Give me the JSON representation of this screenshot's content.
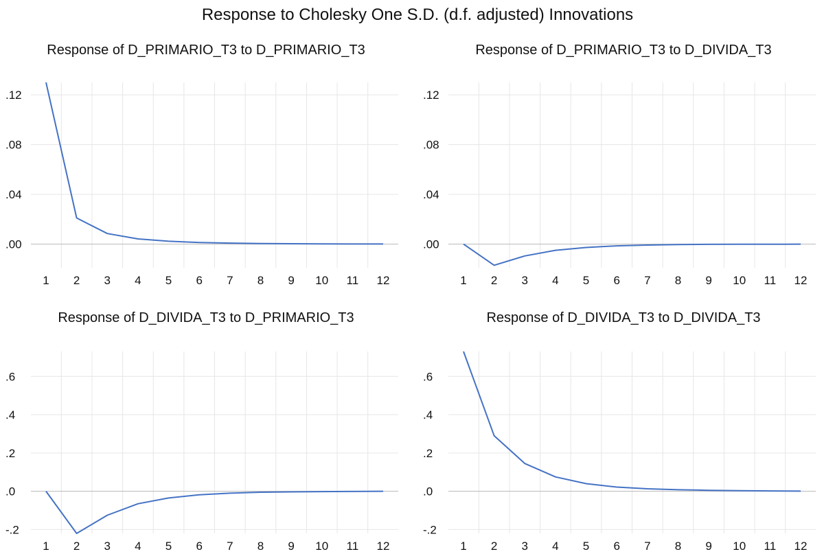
{
  "title": "Response to Cholesky One S.D. (d.f. adjusted) Innovations",
  "chart_data": [
    {
      "type": "line",
      "title": "Response of D_PRIMARIO_T3 to D_PRIMARIO_T3",
      "x": [
        1,
        2,
        3,
        4,
        5,
        6,
        7,
        8,
        9,
        10,
        11,
        12
      ],
      "x_tick_labels": [
        "1",
        "2",
        "3",
        "4",
        "5",
        "6",
        "7",
        "8",
        "9",
        "10",
        "11",
        "12"
      ],
      "series": [
        {
          "values": [
            0.13,
            0.021,
            0.0085,
            0.0042,
            0.0023,
            0.0013,
            0.0008,
            0.0005,
            0.0003,
            0.0002,
            0.0001,
            0.0001
          ]
        }
      ],
      "ylim": [
        -0.019,
        0.13
      ],
      "y_ticks": [
        0.0,
        0.04,
        0.08,
        0.12
      ],
      "y_tick_labels": [
        ".00",
        ".04",
        ".08",
        ".12"
      ],
      "grid": true,
      "line_color": "#4472c4"
    },
    {
      "type": "line",
      "title": "Response of D_PRIMARIO_T3 to D_DIVIDA_T3",
      "x": [
        1,
        2,
        3,
        4,
        5,
        6,
        7,
        8,
        9,
        10,
        11,
        12
      ],
      "x_tick_labels": [
        "1",
        "2",
        "3",
        "4",
        "5",
        "6",
        "7",
        "8",
        "9",
        "10",
        "11",
        "12"
      ],
      "series": [
        {
          "values": [
            0.0,
            -0.017,
            -0.0095,
            -0.005,
            -0.0027,
            -0.0014,
            -0.0008,
            -0.0004,
            -0.0002,
            -0.0001,
            -0.0001,
            0.0
          ]
        }
      ],
      "ylim": [
        -0.019,
        0.13
      ],
      "y_ticks": [
        0.0,
        0.04,
        0.08,
        0.12
      ],
      "y_tick_labels": [
        ".00",
        ".04",
        ".08",
        ".12"
      ],
      "grid": true,
      "line_color": "#4472c4"
    },
    {
      "type": "line",
      "title": "Response of D_DIVIDA_T3 to D_PRIMARIO_T3",
      "x": [
        1,
        2,
        3,
        4,
        5,
        6,
        7,
        8,
        9,
        10,
        11,
        12
      ],
      "x_tick_labels": [
        "1",
        "2",
        "3",
        "4",
        "5",
        "6",
        "7",
        "8",
        "9",
        "10",
        "11",
        "12"
      ],
      "series": [
        {
          "values": [
            0.0,
            -0.22,
            -0.125,
            -0.065,
            -0.035,
            -0.018,
            -0.01,
            -0.005,
            -0.003,
            -0.0015,
            -0.0008,
            0.0
          ]
        }
      ],
      "ylim": [
        -0.22,
        0.73
      ],
      "y_ticks": [
        -0.2,
        0.0,
        0.2,
        0.4,
        0.6
      ],
      "y_tick_labels": [
        "-.2",
        ".0",
        ".2",
        ".4",
        ".6"
      ],
      "grid": true,
      "line_color": "#4472c4"
    },
    {
      "type": "line",
      "title": "Response of D_DIVIDA_T3 to D_DIVIDA_T3",
      "x": [
        1,
        2,
        3,
        4,
        5,
        6,
        7,
        8,
        9,
        10,
        11,
        12
      ],
      "x_tick_labels": [
        "1",
        "2",
        "3",
        "4",
        "5",
        "6",
        "7",
        "8",
        "9",
        "10",
        "11",
        "12"
      ],
      "series": [
        {
          "values": [
            0.73,
            0.29,
            0.145,
            0.075,
            0.04,
            0.022,
            0.013,
            0.008,
            0.005,
            0.003,
            0.002,
            0.001
          ]
        }
      ],
      "ylim": [
        -0.22,
        0.73
      ],
      "y_ticks": [
        -0.2,
        0.0,
        0.2,
        0.4,
        0.6
      ],
      "y_tick_labels": [
        "-.2",
        ".0",
        ".2",
        ".4",
        ".6"
      ],
      "grid": true,
      "line_color": "#4472c4"
    }
  ]
}
